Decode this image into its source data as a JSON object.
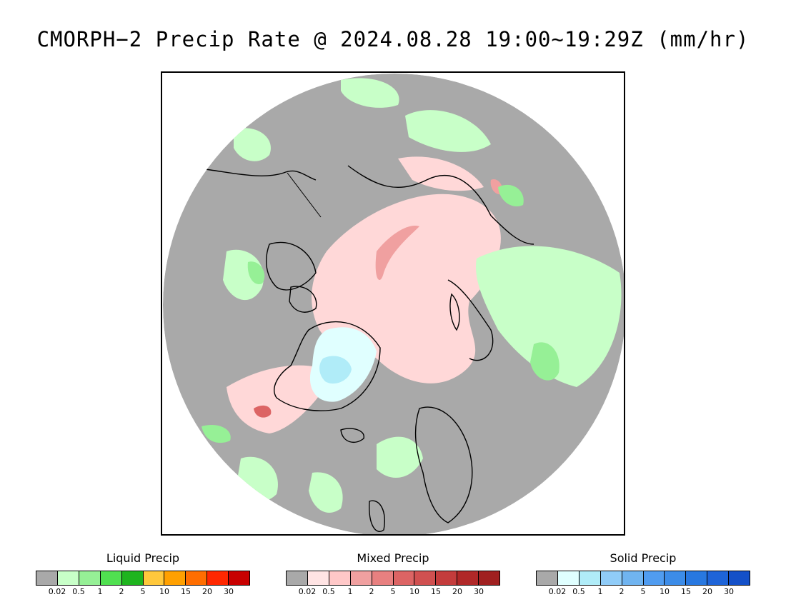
{
  "title": "CMORPH−2 Precip Rate @ 2024.08.28 19:00∼19:29Z (mm/hr)",
  "legends": [
    {
      "title": "Liquid Precip",
      "colors": [
        "#a9a9a9",
        "#c8ffc8",
        "#96f096",
        "#50e050",
        "#1eb41e",
        "#ffc83c",
        "#ffa000",
        "#ff6e00",
        "#ff2800",
        "#c80000"
      ],
      "ticks": [
        "0.02",
        "0.5",
        "1",
        "2",
        "5",
        "10",
        "15",
        "20",
        "30"
      ]
    },
    {
      "title": "Mixed Precip",
      "colors": [
        "#a9a9a9",
        "#ffe4e4",
        "#ffc8c8",
        "#f0a0a0",
        "#e88080",
        "#dc6464",
        "#d05050",
        "#c43c3c",
        "#b02828",
        "#a02020"
      ],
      "ticks": [
        "0.02",
        "0.5",
        "1",
        "2",
        "5",
        "10",
        "15",
        "20",
        "30"
      ]
    },
    {
      "title": "Solid Precip",
      "colors": [
        "#a9a9a9",
        "#e0ffff",
        "#b0ecf8",
        "#90ccf8",
        "#70b4f0",
        "#509cf0",
        "#3c8ce8",
        "#2878e0",
        "#1e64d8",
        "#1450c8"
      ],
      "ticks": [
        "0.02",
        "0.5",
        "1",
        "2",
        "5",
        "10",
        "15",
        "20",
        "30"
      ]
    }
  ],
  "map_colors": {
    "background": "#a9a9a9",
    "land_outline": "#000000",
    "liquid_light": "#c8ffc8",
    "liquid_mid": "#96f096",
    "liquid_strong": "#50e050",
    "mixed_light": "#ffd8d8",
    "mixed_mid": "#f0a0a0",
    "mixed_strong": "#dc6464",
    "solid_light": "#e0ffff",
    "solid_mid": "#b0ecf8"
  }
}
